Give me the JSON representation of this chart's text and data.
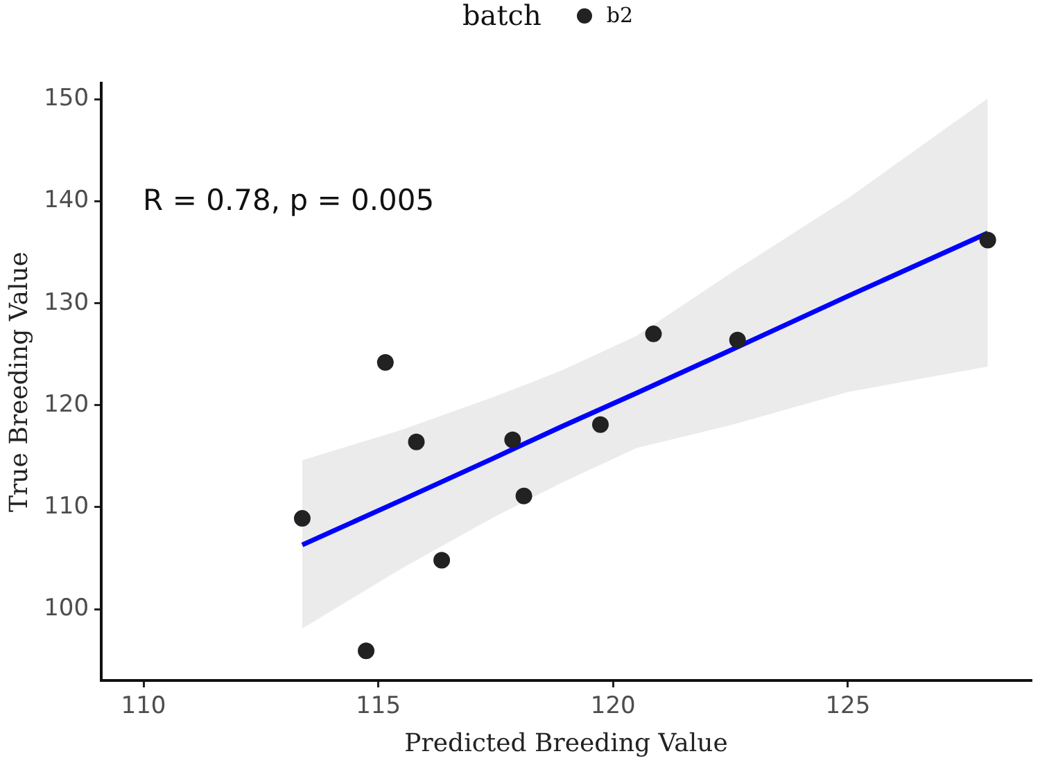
{
  "chart_data": {
    "type": "scatter",
    "xlabel": "Predicted Breeding Value",
    "ylabel": "True Breeding Value",
    "legend_title": "batch",
    "legend": "top",
    "grid": false,
    "marker": "circle",
    "xlim": [
      109.1,
      128.9
    ],
    "xticks": [
      110,
      115,
      120,
      125
    ],
    "ylim": [
      93,
      151.6
    ],
    "yticks": [
      100,
      110,
      120,
      130,
      140,
      150
    ],
    "annotations": [
      "R = 0.78, p = 0.005"
    ],
    "series": [
      {
        "name": "b2",
        "color": "#222222",
        "x": [
          113.38,
          114.74,
          115.15,
          115.81,
          116.35,
          117.86,
          118.1,
          119.73,
          120.86,
          122.65,
          127.98
        ],
        "values": [
          108.9,
          95.9,
          124.2,
          116.4,
          104.8,
          116.6,
          111.1,
          118.1,
          127.0,
          126.4,
          136.2
        ]
      },
      {
        "type": "line",
        "color": "#0000ff",
        "marker": "none",
        "x": [
          113.38,
          115.5,
          117.45,
          118.9,
          120.5,
          122.55,
          125,
          127.98
        ],
        "values": [
          106.3,
          110.7,
          114.8,
          117.9,
          121.2,
          125.5,
          130.7,
          136.9
        ],
        "lower": [
          98.1,
          104.0,
          109.0,
          112.4,
          115.8,
          118.1,
          121.3,
          123.8
        ],
        "upper": [
          114.6,
          117.6,
          120.8,
          123.4,
          126.8,
          133.1,
          140.3,
          150.1
        ]
      }
    ]
  }
}
